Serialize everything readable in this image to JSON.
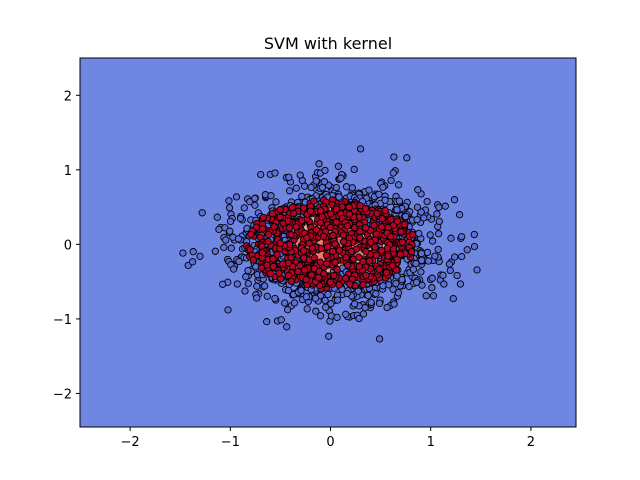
{
  "chart_data": {
    "type": "scatter",
    "title": "SVM with kernel",
    "xlabel": "",
    "ylabel": "",
    "xlim": [
      -2.5,
      2.45
    ],
    "ylim": [
      -2.45,
      2.5
    ],
    "xticks": [
      -2,
      -1,
      0,
      1,
      2
    ],
    "yticks": [
      -2,
      -1,
      0,
      1,
      2
    ],
    "xtick_labels": [
      "−2",
      "−1",
      "0",
      "1",
      "2"
    ],
    "ytick_labels": [
      "−2",
      "−1",
      "0",
      "1",
      "2"
    ],
    "grid": false,
    "legend": "none",
    "background_region": {
      "label": "class 0 decision region",
      "color": "#7087e1"
    },
    "decision_region_inner": {
      "center": [
        0,
        0
      ],
      "radius_x": 0.62,
      "radius_y": 0.52,
      "colors": [
        "#f0a58b",
        "#e3806a",
        "#c8645a"
      ]
    },
    "series": [
      {
        "class": 0,
        "color": "#5b6fd6",
        "edge": "#000000",
        "count": 900,
        "distribution": "ring",
        "r_min": 0.35,
        "r_max": 1.6,
        "y_scale": 0.85
      },
      {
        "class": 1,
        "color": "#b40426",
        "edge": "#000000",
        "count": 700,
        "distribution": "disk",
        "r_max": 0.8,
        "y_scale": 0.75
      }
    ]
  }
}
